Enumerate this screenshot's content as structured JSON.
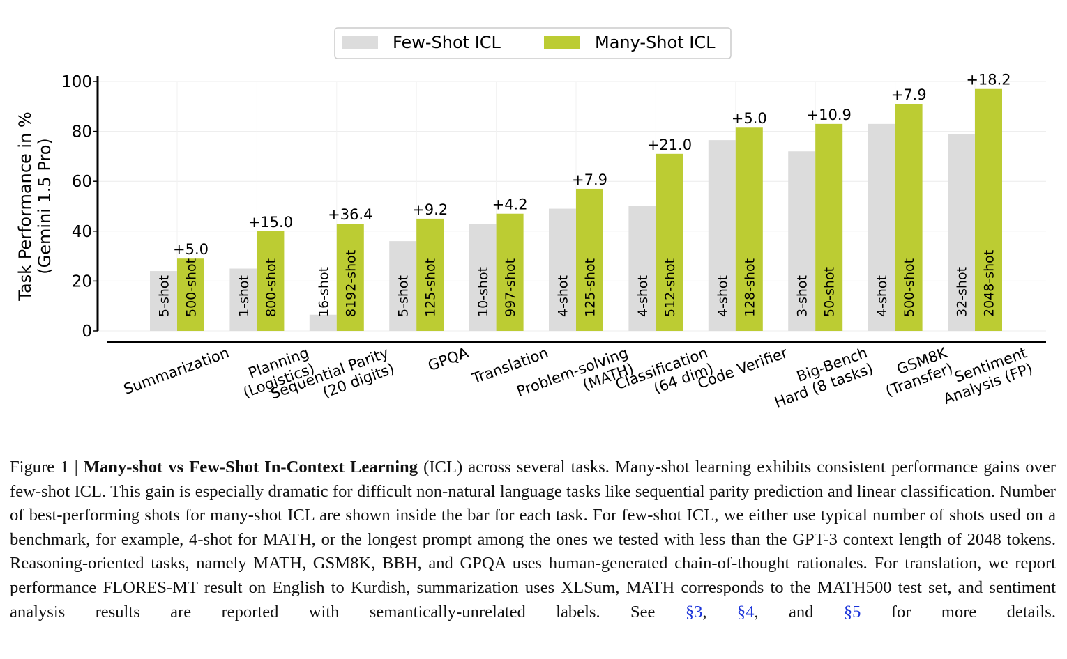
{
  "chart_data": {
    "type": "bar",
    "title": "",
    "xlabel": "",
    "ylabel": "Task Performance in %\n(Gemini 1.5 Pro)",
    "ylim": [
      0,
      100
    ],
    "yticks": [
      0,
      20,
      40,
      60,
      80,
      100
    ],
    "grid": "horizontal",
    "legend_position": "top-center",
    "categories": [
      "Summarization",
      "Planning\n(Logistics)",
      "Sequential Parity\n(20 digits)",
      "GPQA",
      "Translation",
      "Problem-solving\n(MATH)",
      "Classification\n(64 dim)",
      "Code Verifier",
      "Big-Bench\nHard (8 tasks)",
      "GSM8K\n(Transfer)",
      "Sentiment\nAnalysis (FP)"
    ],
    "series": [
      {
        "name": "Few-Shot ICL",
        "color": "#dcdcdc",
        "values": [
          24,
          25,
          6.5,
          36,
          43,
          49,
          50,
          76.5,
          72,
          83,
          79
        ],
        "bar_labels": [
          "5-shot",
          "1-shot",
          "16-shot",
          "5-shot",
          "10-shot",
          "4-shot",
          "4-shot",
          "4-shot",
          "3-shot",
          "4-shot",
          "32-shot"
        ]
      },
      {
        "name": "Many-Shot ICL",
        "color": "#bccc33",
        "values": [
          29,
          40,
          43,
          45,
          47,
          57,
          71,
          81.5,
          83,
          91,
          97
        ],
        "bar_labels": [
          "500-shot",
          "800-shot",
          "8192-shot",
          "125-shot",
          "997-shot",
          "125-shot",
          "512-shot",
          "128-shot",
          "50-shot",
          "500-shot",
          "2048-shot"
        ]
      }
    ],
    "gains": [
      "+5.0",
      "+15.0",
      "+36.4",
      "+9.2",
      "+4.2",
      "+7.9",
      "+21.0",
      "+5.0",
      "+10.9",
      "+7.9",
      "+18.2"
    ]
  },
  "caption": {
    "label": "Figure 1 | ",
    "title": "Many-shot vs Few-Shot In-Context Learning",
    "body": " (ICL) across several tasks. Many-shot learning exhibits consistent performance gains over few-shot ICL. This gain is especially dramatic for difficult non-natural language tasks like sequential parity prediction and linear classification. Number of best-performing shots for many-shot ICL are shown inside the bar for each task. For few-shot ICL, we either use typical number of shots used on a benchmark, for example, 4-shot for MATH, or the longest prompt among the ones we tested with less than the GPT-3 context length of 2048 tokens. Reasoning-oriented tasks, namely MATH, GSM8K, BBH, and GPQA uses human-generated chain-of-thought rationales. For translation, we report performance FLORES-MT result on English to Kurdish, summarization uses XLSum, MATH corresponds to the MATH500 test set, and sentiment analysis results are reported with semantically-unrelated labels. See ",
    "ref1": "§3",
    "sep1": ", ",
    "ref2": "§4",
    "sep2": ", and ",
    "ref3": "§5",
    "tail": " for more details."
  }
}
